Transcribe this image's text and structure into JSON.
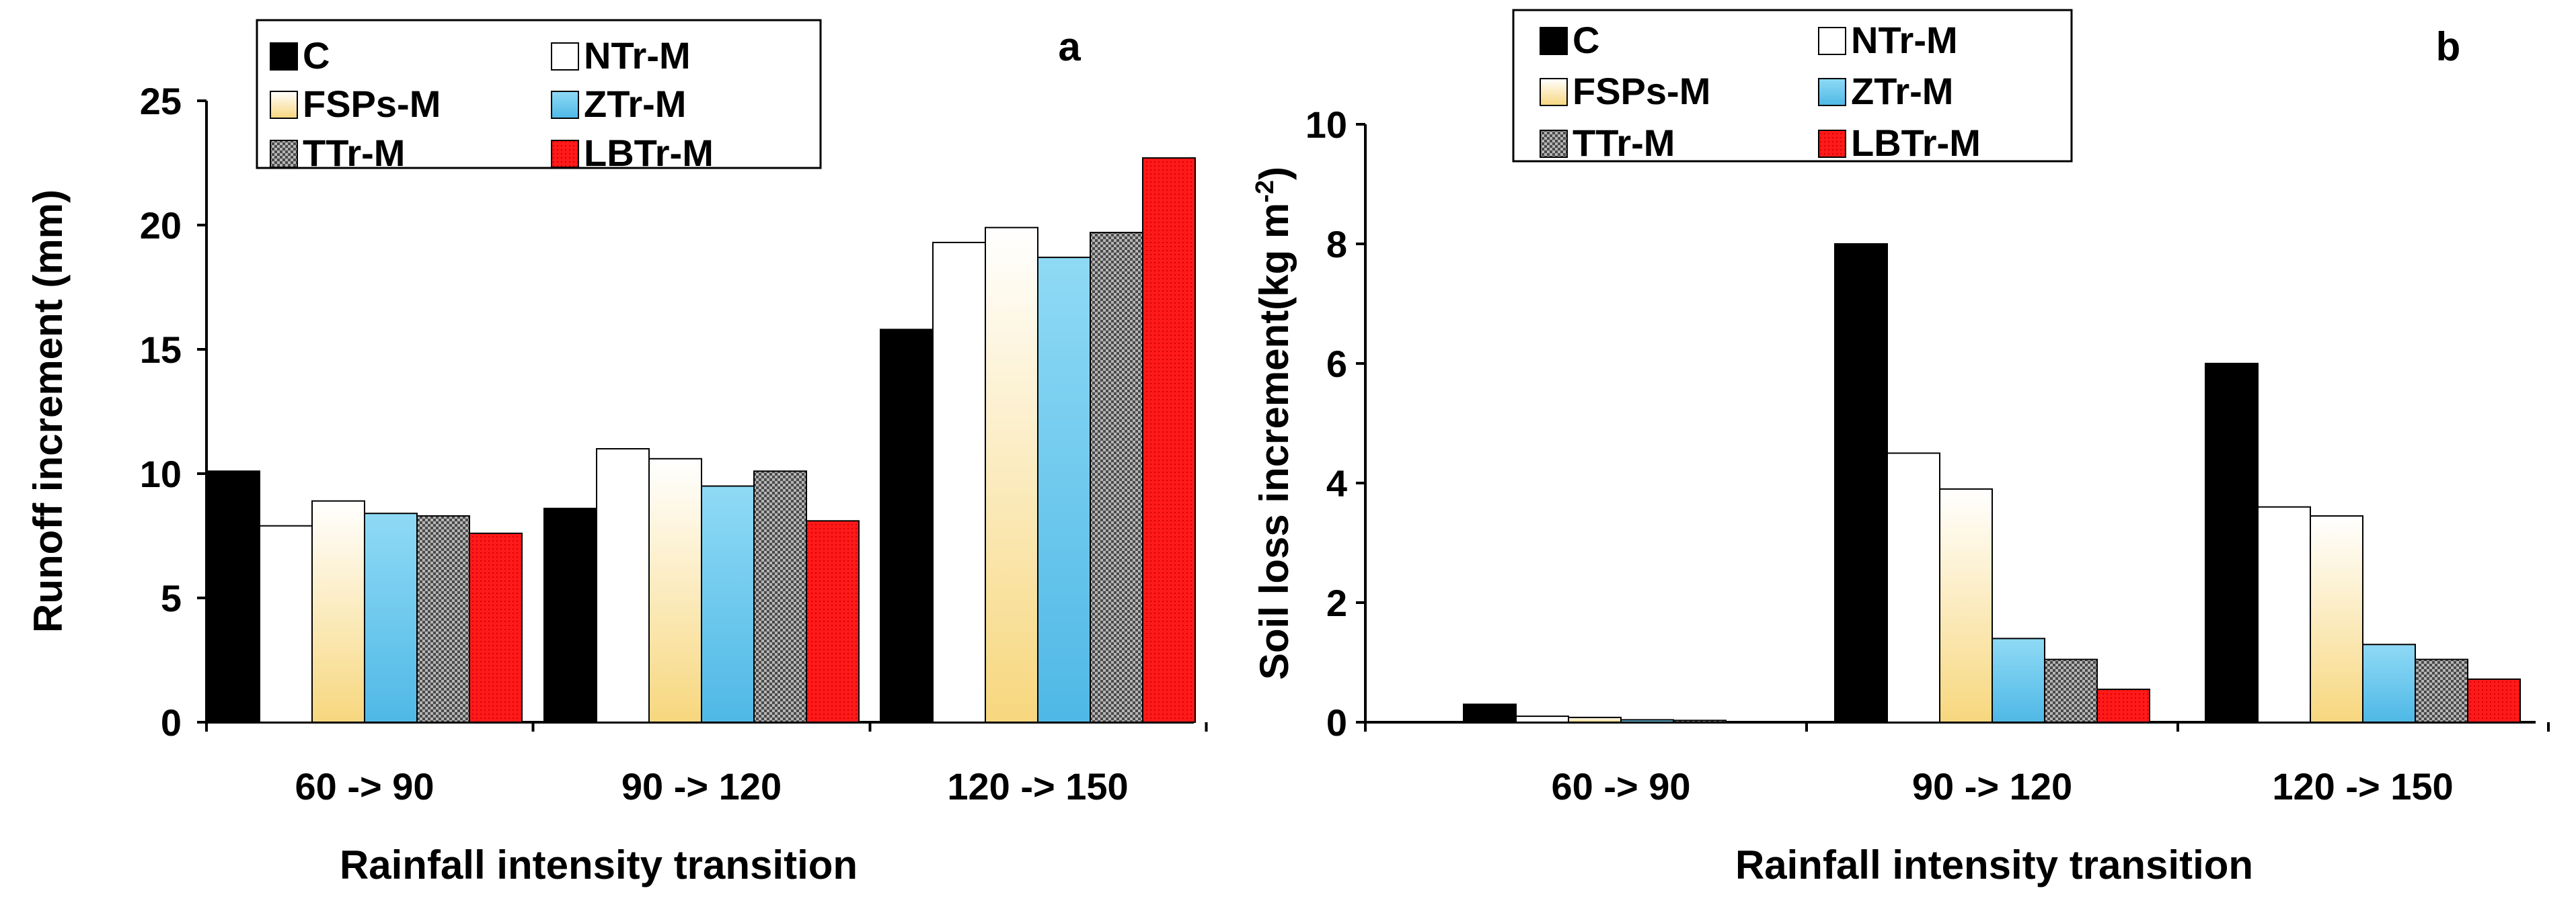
{
  "chart_data": [
    {
      "type": "bar",
      "panel_label": "a",
      "categories": [
        "60 -> 90",
        "90 -> 120",
        "120 -> 150"
      ],
      "series": [
        {
          "name": "C",
          "values": [
            10.1,
            8.6,
            15.8
          ]
        },
        {
          "name": "NTr-M",
          "values": [
            7.9,
            11.0,
            19.3
          ]
        },
        {
          "name": "FSPs-M",
          "values": [
            8.9,
            10.6,
            19.9
          ]
        },
        {
          "name": "ZTr-M",
          "values": [
            8.4,
            9.5,
            18.7
          ]
        },
        {
          "name": "TTr-M",
          "values": [
            8.3,
            10.1,
            19.7
          ]
        },
        {
          "name": "LBTr-M",
          "values": [
            7.6,
            8.1,
            22.7
          ]
        }
      ],
      "xlabel": "Rainfall intensity transition",
      "ylabel": "Runoff increment (mm)",
      "ylabel_super": "",
      "ylabel_tail": "",
      "ylim": [
        0,
        25
      ],
      "yticks": [
        0,
        5,
        10,
        15,
        20,
        25
      ],
      "legend_position": "top"
    },
    {
      "type": "bar",
      "panel_label": "b",
      "categories": [
        "60 -> 90",
        "90 -> 120",
        "120 -> 150"
      ],
      "series": [
        {
          "name": "C",
          "values": [
            0.3,
            8.0,
            6.0
          ]
        },
        {
          "name": "NTr-M",
          "values": [
            0.1,
            4.5,
            3.6
          ]
        },
        {
          "name": "FSPs-M",
          "values": [
            0.08,
            3.9,
            3.45
          ]
        },
        {
          "name": "ZTr-M",
          "values": [
            0.04,
            1.4,
            1.3
          ]
        },
        {
          "name": "TTr-M",
          "values": [
            0.03,
            1.05,
            1.05
          ]
        },
        {
          "name": "LBTr-M",
          "values": [
            0.0,
            0.55,
            0.72
          ]
        }
      ],
      "xlabel": "Rainfall intensity transition",
      "ylabel": "Soil loss increment(kg m",
      "ylabel_super": "-2",
      "ylabel_tail": ")",
      "ylim": [
        0,
        10
      ],
      "yticks": [
        0,
        2,
        4,
        6,
        8,
        10
      ],
      "legend_position": "top"
    }
  ],
  "series_colors": {
    "C": "#000000",
    "NTr-M": "#ffffff",
    "FSPs-M": "#fbe3a1",
    "ZTr-M": "#6ccbef",
    "TTr-M": "#8f8f8f",
    "LBTr-M": "#ff1a1a"
  }
}
